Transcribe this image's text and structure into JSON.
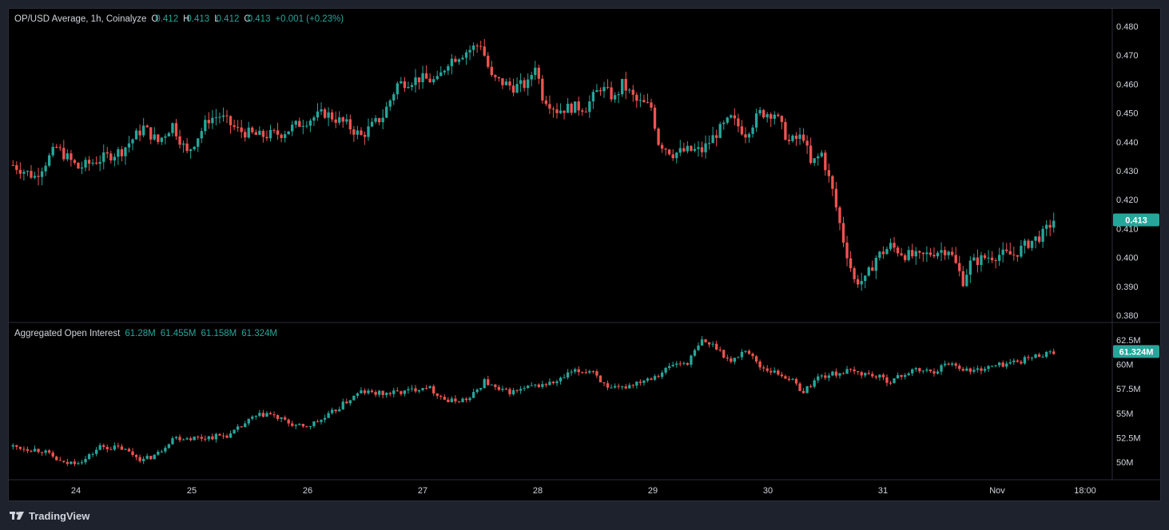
{
  "legend": {
    "symbol": "OP/USD Average, 1h, Coinalyze",
    "o_key": "O",
    "o_val": "0.412",
    "h_key": "H",
    "h_val": "0.413",
    "l_key": "L",
    "l_val": "0.412",
    "c_key": "C",
    "c_val": "0.413",
    "change": "+0.001 (+0.23%)"
  },
  "oi_legend": {
    "title": "Aggregated Open Interest",
    "o": "61.28M",
    "h": "61.455M",
    "l": "61.158M",
    "c": "61.324M"
  },
  "price_badge": "0.413",
  "oi_badge": "61.324M",
  "footer": {
    "brand": "TradingView"
  },
  "colors": {
    "up": "#26a69a",
    "down": "#ef5350",
    "badge": "#26a69a",
    "bg": "#000000",
    "frame": "#1e222d"
  },
  "chart_data": [
    {
      "type": "candlestick",
      "title": "OP/USD Average, 1h, Coinalyze",
      "y_ticks": [
        "0.480",
        "0.470",
        "0.460",
        "0.450",
        "0.440",
        "0.430",
        "0.420",
        "0.410",
        "0.400",
        "0.390",
        "0.380"
      ],
      "ylim": [
        0.38,
        0.48
      ],
      "x_ticks": [
        "24",
        "25",
        "26",
        "27",
        "28",
        "29",
        "30",
        "31",
        "Nov",
        "18:00"
      ],
      "last_price": 0.413,
      "ohlc": {
        "open": 0.412,
        "high": 0.413,
        "low": 0.412,
        "close": 0.413
      },
      "close_path": [
        [
          0,
          0.432
        ],
        [
          6,
          0.428
        ],
        [
          12,
          0.438
        ],
        [
          18,
          0.431
        ],
        [
          24,
          0.434
        ],
        [
          30,
          0.437
        ],
        [
          36,
          0.445
        ],
        [
          40,
          0.44
        ],
        [
          44,
          0.446
        ],
        [
          48,
          0.436
        ],
        [
          54,
          0.448
        ],
        [
          57,
          0.449
        ],
        [
          62,
          0.444
        ],
        [
          68,
          0.442
        ],
        [
          74,
          0.443
        ],
        [
          80,
          0.447
        ],
        [
          86,
          0.45
        ],
        [
          92,
          0.446
        ],
        [
          96,
          0.442
        ],
        [
          102,
          0.449
        ],
        [
          106,
          0.46
        ],
        [
          112,
          0.462
        ],
        [
          117,
          0.461
        ],
        [
          120,
          0.468
        ],
        [
          126,
          0.472
        ],
        [
          129,
          0.474
        ],
        [
          132,
          0.462
        ],
        [
          138,
          0.459
        ],
        [
          142,
          0.46
        ],
        [
          144,
          0.467
        ],
        [
          146,
          0.456
        ],
        [
          150,
          0.451
        ],
        [
          154,
          0.452
        ],
        [
          158,
          0.452
        ],
        [
          162,
          0.459
        ],
        [
          166,
          0.455
        ],
        [
          168,
          0.46
        ],
        [
          172,
          0.454
        ],
        [
          176,
          0.452
        ],
        [
          178,
          0.44
        ],
        [
          182,
          0.436
        ],
        [
          186,
          0.437
        ],
        [
          190,
          0.437
        ],
        [
          194,
          0.443
        ],
        [
          198,
          0.448
        ],
        [
          202,
          0.443
        ],
        [
          206,
          0.45
        ],
        [
          210,
          0.45
        ],
        [
          214,
          0.44
        ],
        [
          218,
          0.442
        ],
        [
          220,
          0.432
        ],
        [
          223,
          0.436
        ],
        [
          226,
          0.423
        ],
        [
          229,
          0.406
        ],
        [
          232,
          0.392
        ],
        [
          235,
          0.392
        ],
        [
          238,
          0.4
        ],
        [
          242,
          0.404
        ],
        [
          246,
          0.401
        ],
        [
          250,
          0.4
        ],
        [
          254,
          0.402
        ],
        [
          258,
          0.403
        ],
        [
          262,
          0.392
        ],
        [
          264,
          0.398
        ],
        [
          268,
          0.4
        ],
        [
          272,
          0.401
        ],
        [
          276,
          0.401
        ],
        [
          280,
          0.405
        ],
        [
          284,
          0.408
        ],
        [
          287,
          0.413
        ]
      ],
      "series": [
        {
          "name": "OP/USD",
          "last": 0.413
        }
      ]
    },
    {
      "type": "candlestick",
      "title": "Aggregated Open Interest",
      "y_ticks": [
        "62.5M",
        "60M",
        "57.5M",
        "55M",
        "52.5M",
        "50M"
      ],
      "ylim": [
        48.7,
        63.6
      ],
      "last_value_millions": 61.324,
      "ohlc_millions": {
        "open": 61.28,
        "high": 61.455,
        "low": 61.158,
        "close": 61.324
      },
      "close_path": [
        [
          0,
          51.6
        ],
        [
          8,
          51.2
        ],
        [
          14,
          49.8
        ],
        [
          20,
          50.3
        ],
        [
          24,
          51.6
        ],
        [
          30,
          51.4
        ],
        [
          36,
          50.2
        ],
        [
          40,
          50.9
        ],
        [
          44,
          52.5
        ],
        [
          52,
          52.5
        ],
        [
          60,
          52.8
        ],
        [
          66,
          54.5
        ],
        [
          70,
          55.0
        ],
        [
          76,
          54.0
        ],
        [
          80,
          53.5
        ],
        [
          86,
          54.5
        ],
        [
          92,
          56.2
        ],
        [
          96,
          57.2
        ],
        [
          102,
          57.0
        ],
        [
          108,
          57.2
        ],
        [
          114,
          57.8
        ],
        [
          120,
          56.2
        ],
        [
          126,
          56.5
        ],
        [
          130,
          58.3
        ],
        [
          134,
          57.3
        ],
        [
          138,
          57.2
        ],
        [
          144,
          57.8
        ],
        [
          150,
          58.2
        ],
        [
          154,
          59.2
        ],
        [
          160,
          59.4
        ],
        [
          164,
          57.4
        ],
        [
          168,
          57.6
        ],
        [
          172,
          58.2
        ],
        [
          178,
          59.0
        ],
        [
          182,
          60.0
        ],
        [
          186,
          60.2
        ],
        [
          190,
          62.4
        ],
        [
          194,
          61.8
        ],
        [
          198,
          60.2
        ],
        [
          202,
          61.6
        ],
        [
          206,
          59.8
        ],
        [
          210,
          59.2
        ],
        [
          214,
          58.6
        ],
        [
          218,
          57.2
        ],
        [
          222,
          58.7
        ],
        [
          226,
          59.0
        ],
        [
          230,
          59.3
        ],
        [
          236,
          59.0
        ],
        [
          242,
          58.3
        ],
        [
          248,
          59.4
        ],
        [
          254,
          59.3
        ],
        [
          258,
          60.2
        ],
        [
          264,
          59.3
        ],
        [
          270,
          59.8
        ],
        [
          278,
          60.4
        ],
        [
          286,
          61.3
        ]
      ],
      "series": [
        {
          "name": "Aggregated Open Interest",
          "last_millions": 61.324
        }
      ]
    }
  ]
}
